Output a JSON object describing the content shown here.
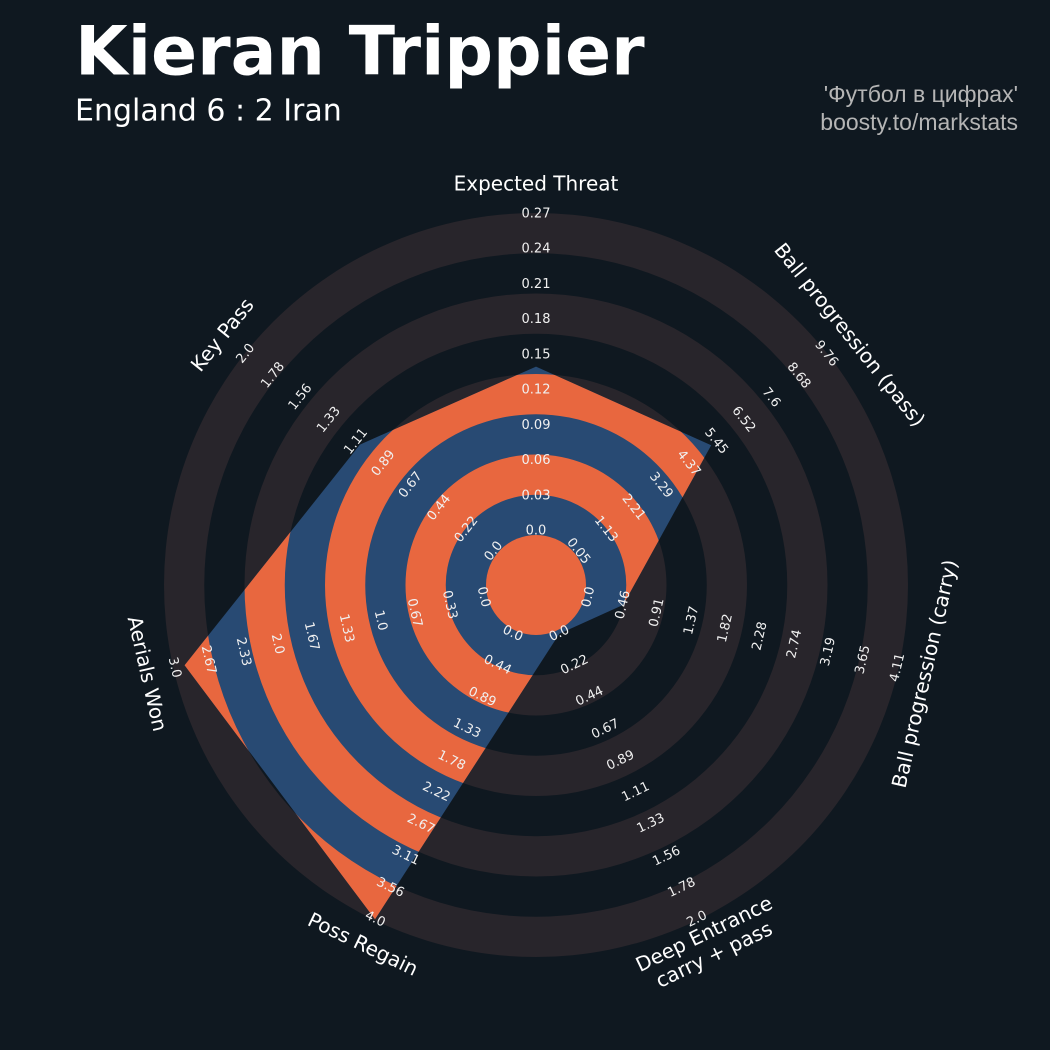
{
  "chart_data": {
    "type": "radar",
    "title": "Kieran Trippier",
    "subtitle": "England 6 : 2 Iran",
    "credits": [
      "'Футбол в цифрах'",
      "boosty.to/markstats"
    ],
    "axes": [
      {
        "labels": [
          "Expected Threat"
        ],
        "lim": [
          0,
          0.27
        ],
        "ticks": [
          {
            "value": 0,
            "label": "0.0"
          },
          0.03,
          0.06,
          0.09,
          0.12,
          0.15,
          0.18,
          0.21,
          0.24,
          0.27
        ]
      },
      {
        "labels": [
          "Ball progression (pass)"
        ],
        "lim": [
          0.05,
          9.76
        ],
        "ticks": [
          0.05,
          1.13,
          2.21,
          3.29,
          4.37,
          5.45,
          6.52,
          7.6,
          8.68,
          9.76
        ]
      },
      {
        "labels": [
          "Ball progression (carry)"
        ],
        "lim": [
          0,
          4.11
        ],
        "ticks": [
          {
            "value": 0,
            "label": "0.0"
          },
          0.46,
          0.91,
          1.37,
          1.82,
          2.28,
          2.74,
          3.19,
          3.65,
          4.11
        ]
      },
      {
        "labels": [
          "Deep Entrance",
          "carry + pass"
        ],
        "lim": [
          0,
          2
        ],
        "ticks": [
          {
            "value": 0,
            "label": "0.0"
          },
          0.22,
          0.44,
          0.67,
          0.89,
          1.11,
          1.33,
          1.56,
          1.78,
          {
            "value": 2,
            "label": "2.0"
          }
        ]
      },
      {
        "labels": [
          "Poss Regain"
        ],
        "lim": [
          0,
          4
        ],
        "ticks": [
          {
            "value": 0,
            "label": "0.0"
          },
          0.44,
          0.89,
          1.33,
          1.78,
          2.22,
          2.67,
          3.11,
          3.56,
          {
            "value": 4,
            "label": "4.0"
          }
        ]
      },
      {
        "labels": [
          "Aerials Won"
        ],
        "lim": [
          0,
          3
        ],
        "ticks": [
          {
            "value": 0,
            "label": "0.0"
          },
          0.33,
          0.67,
          {
            "value": 1,
            "label": "1.0"
          },
          1.33,
          1.67,
          {
            "value": 2,
            "label": "2.0"
          },
          2.33,
          2.67,
          {
            "value": 3,
            "label": "3.0"
          }
        ]
      },
      {
        "labels": [
          "Key Pass"
        ],
        "lim": [
          0,
          2
        ],
        "ticks": [
          {
            "value": 0,
            "label": "0.0"
          },
          0.22,
          0.44,
          0.67,
          0.89,
          1.11,
          1.33,
          1.56,
          1.78,
          {
            "value": 2,
            "label": "2.0"
          }
        ]
      }
    ],
    "values": [
      0.14,
      5.26,
      0.46,
      0,
      4.0,
      2.9,
      1.08
    ],
    "color": "#284a73",
    "highlight_color": "#e8673f",
    "ring_color": "#28252b",
    "background": "#0f1820"
  }
}
